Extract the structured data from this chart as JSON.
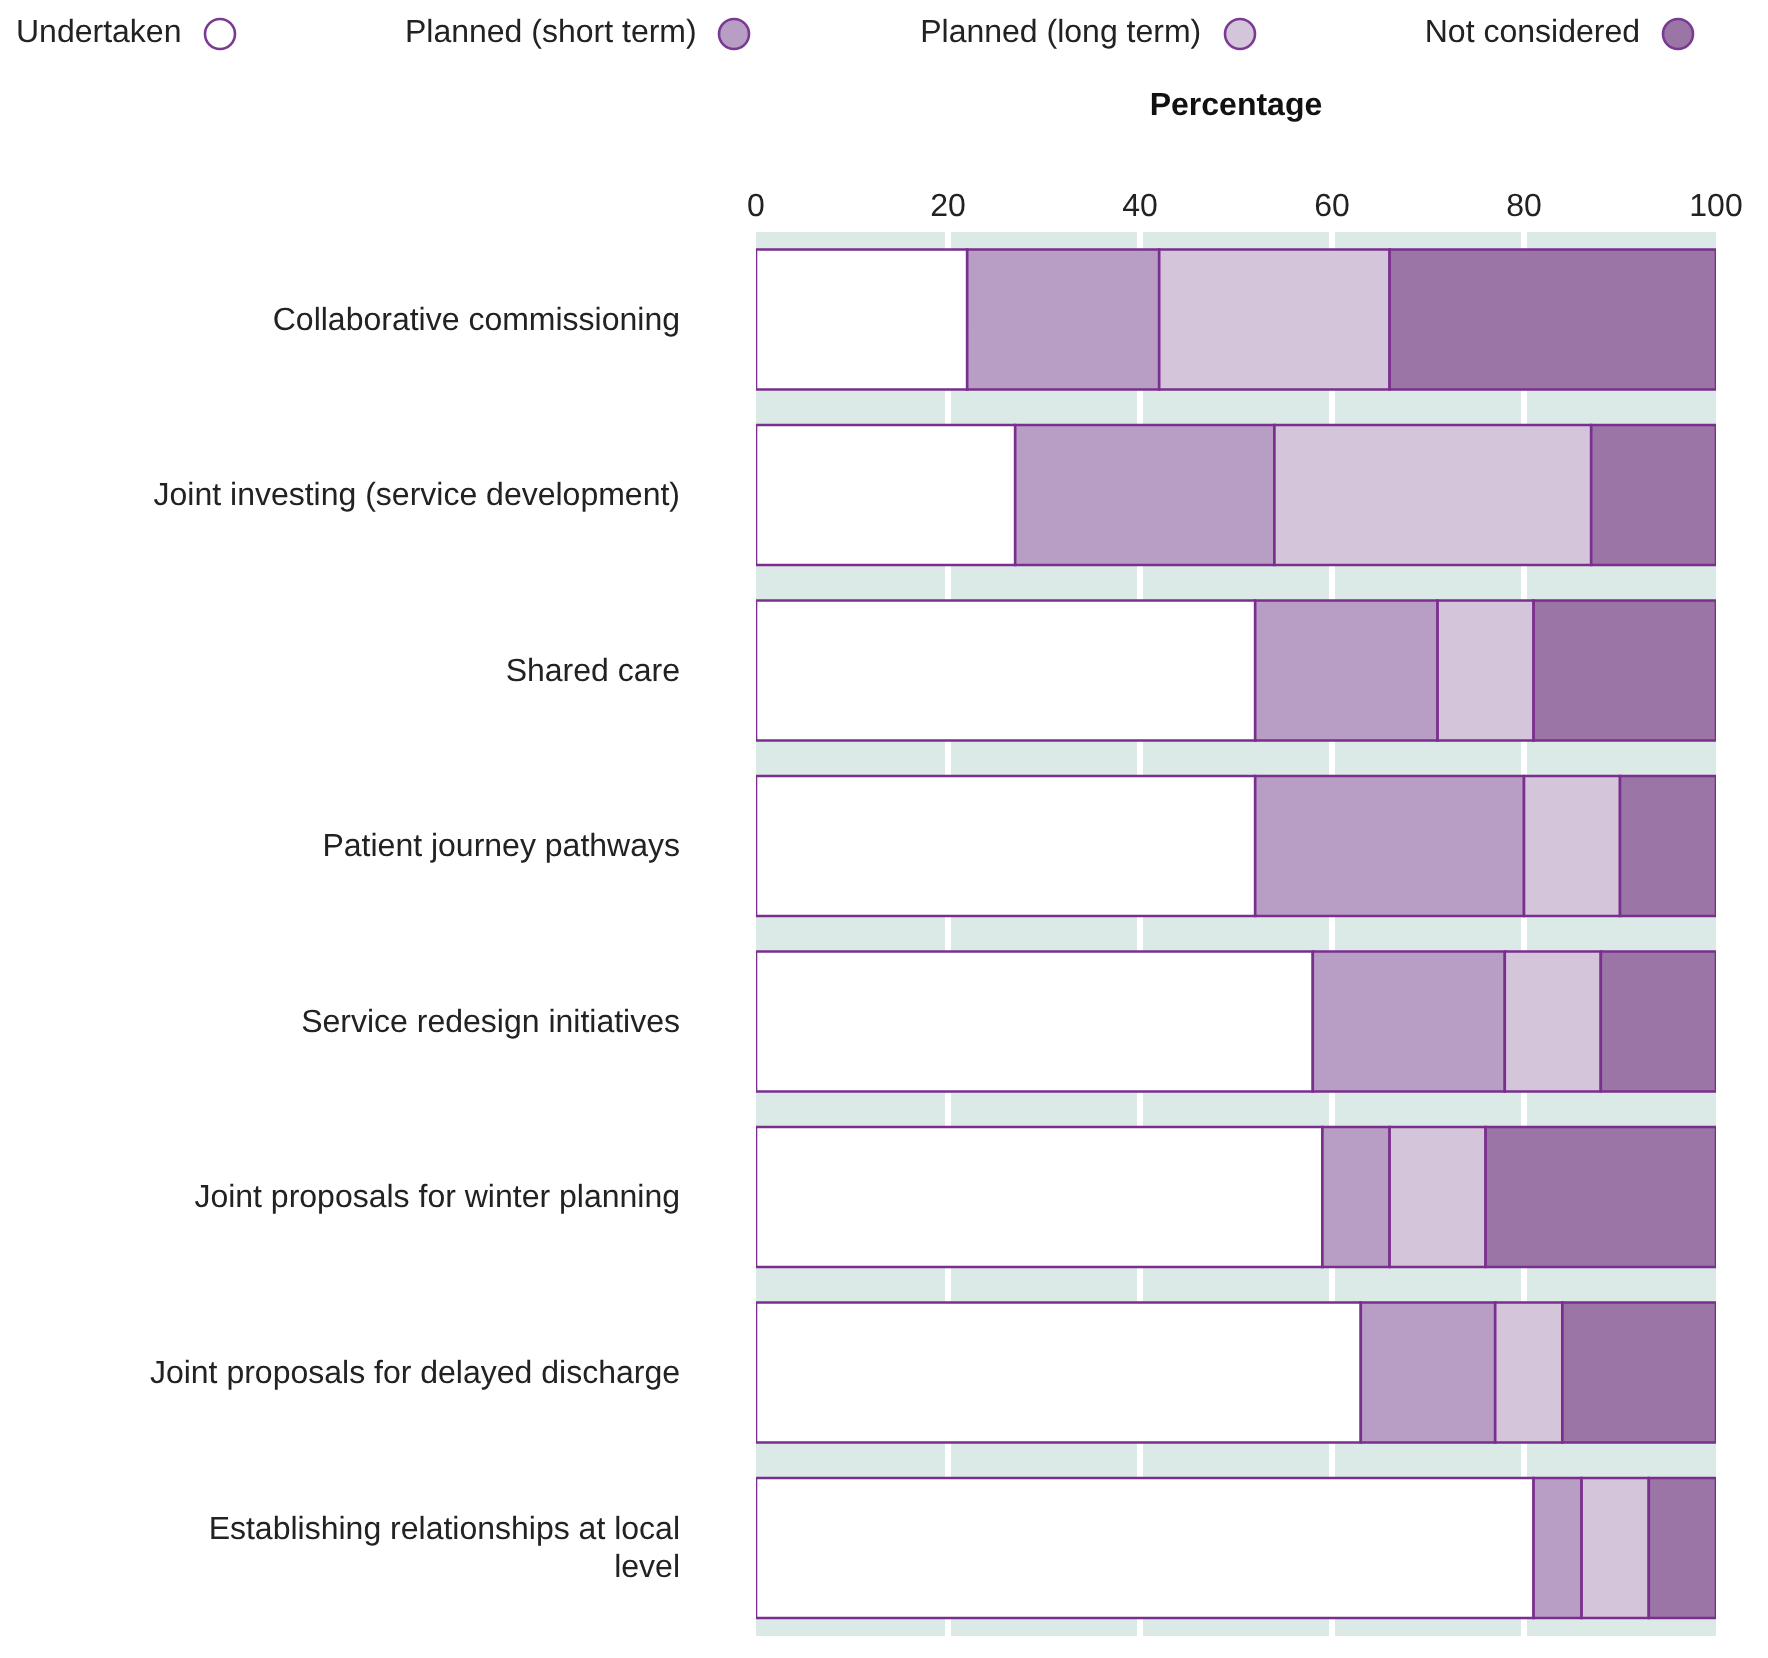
{
  "chart_data": {
    "type": "bar",
    "orientation": "horizontal",
    "stacked": true,
    "xlabel": "Percentage",
    "categories": [
      "Collaborative commissioning",
      "Joint investing (service development)",
      "Shared care",
      "Patient journey pathways",
      "Service redesign initiatives",
      "Joint proposals for winter planning",
      "Joint proposals for delayed discharge",
      "Establishing relationships at local level"
    ],
    "series": [
      {
        "name": "Undertaken",
        "color": "#ffffff",
        "values": [
          22,
          27,
          52,
          52,
          58,
          59,
          63,
          81
        ]
      },
      {
        "name": "Planned (short term)",
        "color": "#b89ec4",
        "values": [
          20,
          27,
          19,
          28,
          20,
          7,
          14,
          5
        ]
      },
      {
        "name": "Planned (long term)",
        "color": "#d5c5da",
        "values": [
          24,
          33,
          10,
          10,
          10,
          10,
          7,
          7
        ]
      },
      {
        "name": "Not considered",
        "color": "#9a75a6",
        "values": [
          34,
          13,
          19,
          10,
          12,
          24,
          16,
          7
        ]
      }
    ],
    "xlim": [
      0,
      100
    ],
    "xticks": [
      0,
      20,
      40,
      60,
      80,
      100
    ],
    "grid": "x",
    "legend": "top"
  }
}
